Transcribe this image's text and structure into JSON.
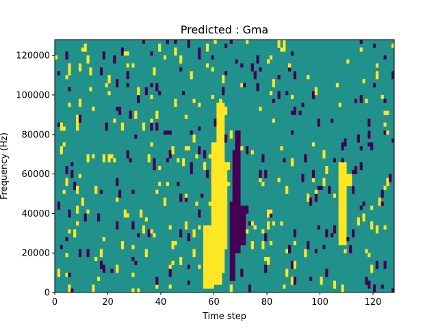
{
  "chart_data": {
    "type": "heatmap",
    "title": "Predicted : Gma",
    "xlabel": "Time step",
    "ylabel": "Frequency (Hz)",
    "xlim": [
      0,
      128
    ],
    "ylim": [
      0,
      128000
    ],
    "x_ticks": [
      0,
      20,
      40,
      60,
      80,
      100,
      120
    ],
    "y_ticks": [
      0,
      20000,
      40000,
      60000,
      80000,
      100000,
      120000
    ],
    "x_tick_labels": [
      "0",
      "20",
      "40",
      "60",
      "80",
      "100",
      "120"
    ],
    "y_tick_labels": [
      "0",
      "20000",
      "40000",
      "60000",
      "80000",
      "100000",
      "120000"
    ],
    "n_time_steps": 128,
    "n_frequency_bins": 64,
    "value_levels": [
      -1,
      0,
      1
    ],
    "colors": {
      "low": "#440154",
      "mid": "#21918c",
      "high": "#fde725"
    },
    "background_level": 0,
    "high_regions": [
      {
        "time": [
          56,
          60
        ],
        "freq": [
          2000,
          34000
        ]
      },
      {
        "time": [
          59,
          63
        ],
        "freq": [
          4000,
          76000
        ]
      },
      {
        "time": [
          61,
          64
        ],
        "freq": [
          12000,
          96000
        ]
      },
      {
        "time": [
          62,
          65
        ],
        "freq": [
          22000,
          66000
        ]
      },
      {
        "time": [
          107,
          110
        ],
        "freq": [
          24000,
          66000
        ]
      },
      {
        "time": [
          108,
          112
        ],
        "freq": [
          54000,
          60000
        ]
      }
    ],
    "low_regions": [
      {
        "time": [
          67,
          70
        ],
        "freq": [
          20000,
          72000
        ]
      },
      {
        "time": [
          66,
          68
        ],
        "freq": [
          6000,
          46000
        ]
      },
      {
        "time": [
          68,
          70
        ],
        "freq": [
          56000,
          82000
        ]
      },
      {
        "time": [
          70,
          72
        ],
        "freq": [
          24000,
          44000
        ]
      }
    ],
    "scatter_density": {
      "high": 0.028,
      "low": 0.028
    },
    "scatter_seed": 20240611
  }
}
